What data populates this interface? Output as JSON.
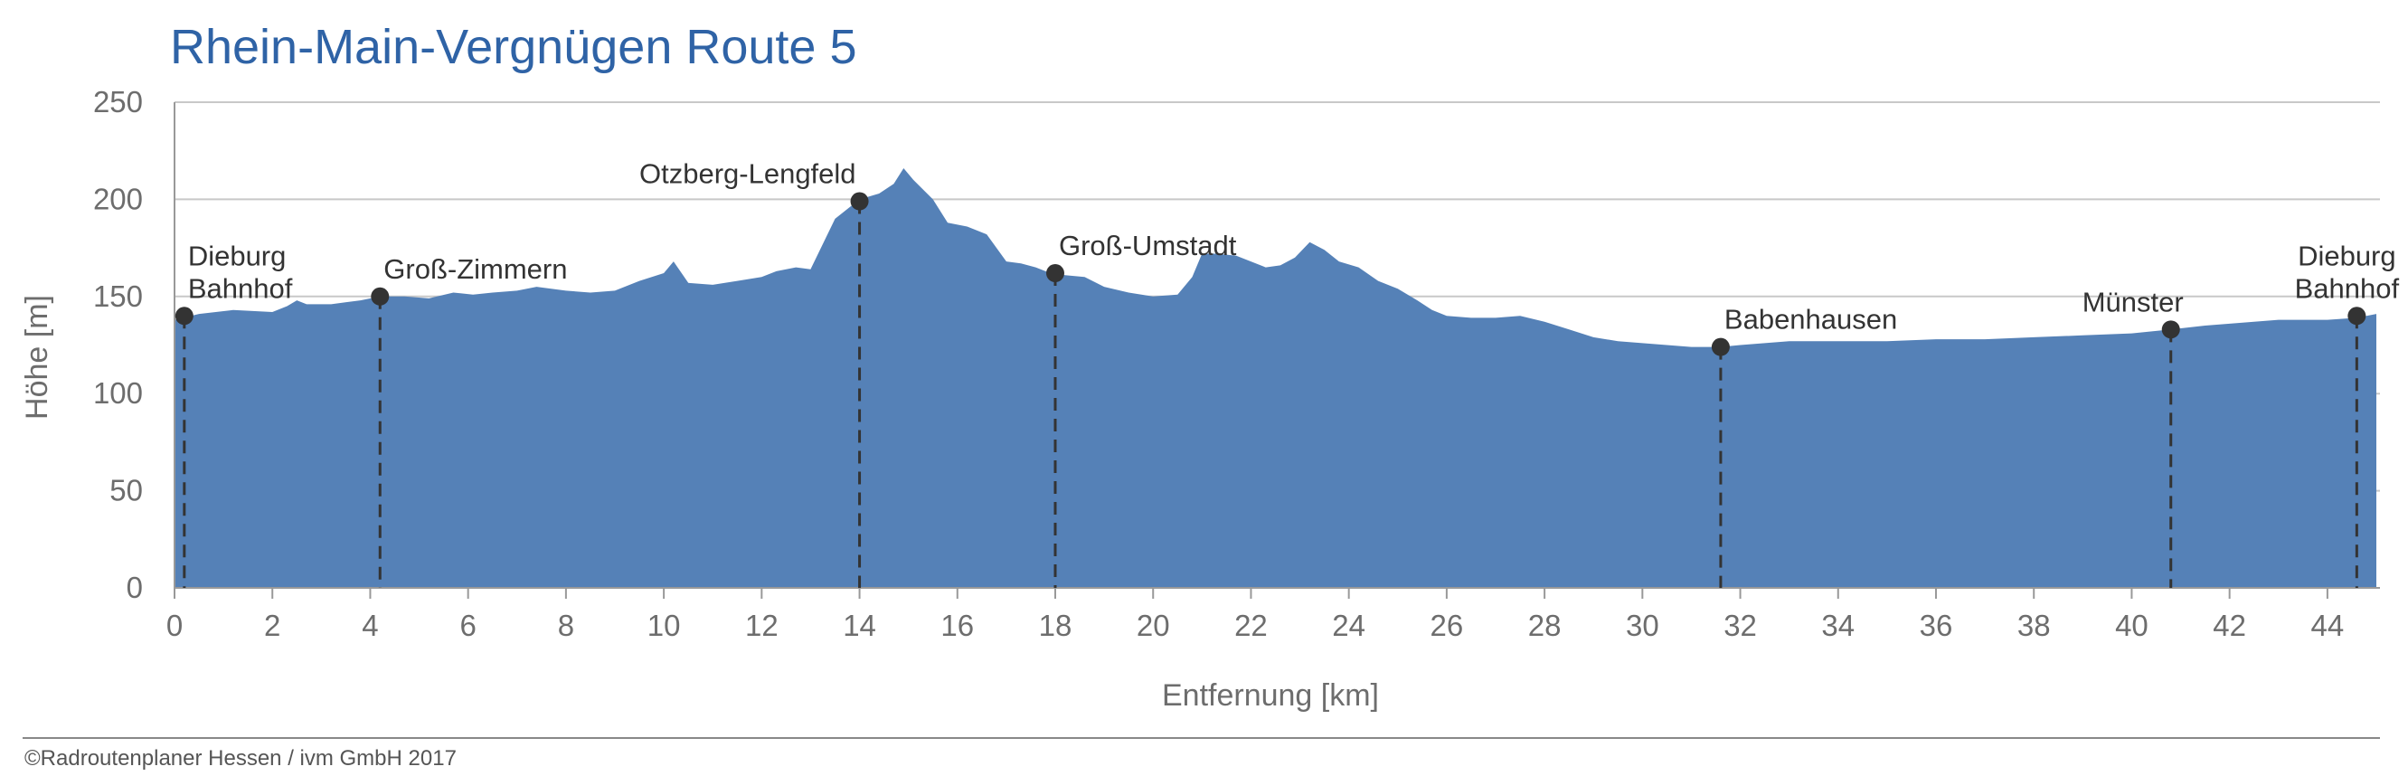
{
  "chart_data": {
    "type": "area",
    "title": "Rhein-Main-Vergnügen Route 5",
    "xlabel": "Entfernung [km]",
    "ylabel": "Höhe [m]",
    "xlim": [
      0,
      45
    ],
    "ylim": [
      0,
      250
    ],
    "xticks": [
      0,
      2,
      4,
      6,
      8,
      10,
      12,
      14,
      16,
      18,
      20,
      22,
      24,
      26,
      28,
      30,
      32,
      34,
      36,
      38,
      40,
      42,
      44
    ],
    "yticks": [
      0,
      50,
      100,
      150,
      200,
      250
    ],
    "grid": true,
    "colors": {
      "fill": "#5581b7",
      "title": "#2f63a6",
      "grid": "#c8c8c8",
      "marker": "#333333"
    },
    "series": [
      {
        "x": [
          0,
          0.5,
          1.2,
          2.0,
          2.3,
          2.5,
          2.7,
          3.2,
          3.8,
          4.2,
          4.7,
          5.2,
          5.7,
          6.1,
          6.5,
          7.0,
          7.4,
          8.0,
          8.5,
          9.0,
          9.5,
          10.0,
          10.2,
          10.5,
          11.0,
          11.5,
          12.0,
          12.3,
          12.7,
          13.0,
          13.5,
          14.0,
          14.4,
          14.7,
          14.9,
          15.1,
          15.5,
          15.8,
          16.2,
          16.6,
          17.0,
          17.3,
          17.6,
          17.9,
          18.2,
          18.6,
          19.0,
          19.5,
          20.0,
          20.5,
          20.8,
          21.0,
          21.3,
          21.7,
          22.0,
          22.3,
          22.6,
          22.9,
          23.2,
          23.5,
          23.8,
          24.2,
          24.6,
          25.0,
          25.4,
          25.7,
          26.0,
          26.5,
          27.0,
          27.5,
          28.0,
          28.5,
          29.0,
          29.5,
          30.0,
          30.5,
          31.0,
          31.6,
          32.0,
          32.5,
          33.0,
          33.5,
          34.0,
          35.0,
          36.0,
          37.0,
          38.0,
          39.0,
          40.0,
          40.8,
          41.5,
          42.0,
          42.5,
          43.0,
          43.5,
          44.0,
          44.6,
          45.0
        ],
        "y": [
          138,
          141,
          143,
          142,
          145,
          148,
          146,
          146,
          148,
          150,
          150,
          149,
          152,
          151,
          152,
          153,
          155,
          153,
          152,
          153,
          158,
          162,
          168,
          157,
          156,
          158,
          160,
          163,
          165,
          164,
          190,
          200,
          203,
          208,
          216,
          210,
          200,
          188,
          186,
          182,
          168,
          167,
          165,
          162,
          161,
          160,
          155,
          152,
          150,
          151,
          160,
          172,
          172,
          171,
          168,
          165,
          166,
          170,
          178,
          174,
          168,
          165,
          158,
          154,
          148,
          143,
          140,
          139,
          139,
          140,
          137,
          133,
          129,
          127,
          126,
          125,
          124,
          124,
          125,
          126,
          127,
          127,
          127,
          127,
          128,
          128,
          129,
          130,
          131,
          133,
          135,
          136,
          137,
          138,
          138,
          138,
          139,
          141
        ]
      }
    ],
    "waypoints": [
      {
        "km": 0.2,
        "y": 140,
        "label": [
          "Dieburg",
          "Bahnhof"
        ],
        "anchor": "start",
        "dx": 4
      },
      {
        "km": 4.2,
        "y": 150,
        "label": [
          "Groß-Zimmern"
        ],
        "anchor": "start",
        "dx": 4
      },
      {
        "km": 14.0,
        "y": 199,
        "label": [
          "Otzberg-Lengfeld"
        ],
        "anchor": "end",
        "dx": -4
      },
      {
        "km": 18.0,
        "y": 162,
        "label": [
          "Groß-Umstadt"
        ],
        "anchor": "start",
        "dx": 4
      },
      {
        "km": 31.6,
        "y": 124,
        "label": [
          "Babenhausen"
        ],
        "anchor": "start",
        "dx": 4
      },
      {
        "km": 40.8,
        "y": 133,
        "label": [
          "Münster"
        ],
        "anchor": "end",
        "dx": 14
      },
      {
        "km": 44.6,
        "y": 140,
        "label": [
          "Dieburg",
          "Bahnhof"
        ],
        "anchor": "middle",
        "dx": -11
      }
    ]
  },
  "footer": "©Radroutenplaner Hessen / ivm GmbH 2017"
}
